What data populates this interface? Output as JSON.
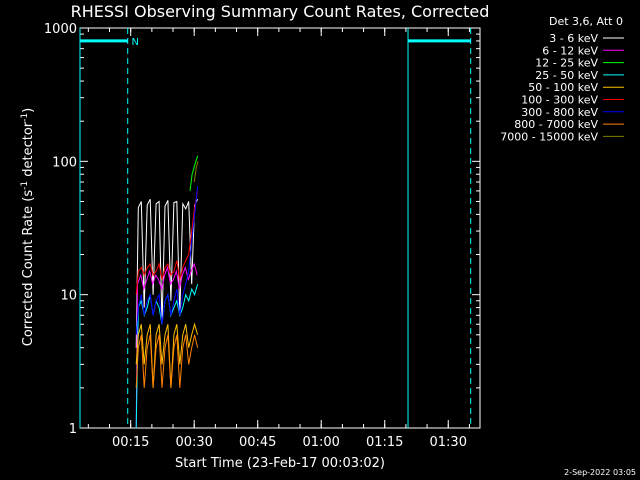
{
  "chart_data": {
    "type": "line",
    "title": "RHESSI Observing Summary Count Rates, Corrected",
    "xlabel": "Start Time (23-Feb-17 00:03:02)",
    "ylabel_main": "Corrected Count Rate (s",
    "ylabel_sup1": "-1",
    "ylabel_mid": " detector",
    "ylabel_sup2": "-1",
    "ylabel_end": ")",
    "yscale": "log",
    "xlim_minutes": [
      3.03,
      97.5
    ],
    "ylim": [
      1,
      1000
    ],
    "x_ticks": [
      {
        "minutes": 15,
        "label": "00:15"
      },
      {
        "minutes": 30,
        "label": "00:30"
      },
      {
        "minutes": 45,
        "label": "00:45"
      },
      {
        "minutes": 60,
        "label": "01:00"
      },
      {
        "minutes": 75,
        "label": "01:15"
      },
      {
        "minutes": 90,
        "label": "01:30"
      }
    ],
    "y_ticks": [
      {
        "value": 1,
        "label": "1"
      },
      {
        "value": 10,
        "label": "10"
      },
      {
        "value": 100,
        "label": "100"
      },
      {
        "value": 1000,
        "label": "1000"
      }
    ],
    "legend_header": "Det 3,6, Att 0",
    "legend_position": "right",
    "series": [
      {
        "name": "3 - 6 keV",
        "color": "#ffffff",
        "baseline": 38,
        "x_start": 16.3,
        "x_end": 28.0,
        "points": [
          [
            16.3,
            4
          ],
          [
            16.8,
            45
          ],
          [
            17.5,
            50
          ],
          [
            18.2,
            8
          ],
          [
            18.9,
            47
          ],
          [
            19.6,
            52
          ],
          [
            20.3,
            10
          ],
          [
            21.0,
            48
          ],
          [
            21.7,
            50
          ],
          [
            22.4,
            6
          ],
          [
            23.1,
            46
          ],
          [
            23.8,
            51
          ],
          [
            24.5,
            9
          ],
          [
            25.2,
            49
          ],
          [
            25.9,
            50
          ],
          [
            26.6,
            7
          ],
          [
            27.3,
            48
          ],
          [
            28.0,
            44
          ],
          [
            28.7,
            50
          ],
          [
            29.4,
            12
          ],
          [
            30.1,
            47
          ],
          [
            30.8,
            52
          ]
        ]
      },
      {
        "name": "6 - 12 keV",
        "color": "#ff00ff",
        "points": [
          [
            16.3,
            1
          ],
          [
            16.6,
            12
          ],
          [
            17.4,
            14
          ],
          [
            18.1,
            11
          ],
          [
            18.8,
            13
          ],
          [
            19.5,
            15
          ],
          [
            20.2,
            12
          ],
          [
            20.9,
            14
          ],
          [
            21.6,
            13
          ],
          [
            22.3,
            11
          ],
          [
            23.0,
            14
          ],
          [
            23.7,
            16
          ],
          [
            24.4,
            12
          ],
          [
            25.1,
            13
          ],
          [
            25.8,
            15
          ],
          [
            26.5,
            11
          ],
          [
            27.2,
            14
          ],
          [
            27.9,
            16
          ],
          [
            28.6,
            13
          ],
          [
            29.3,
            15
          ],
          [
            30.0,
            17
          ],
          [
            30.7,
            14
          ]
        ]
      },
      {
        "name": "12 - 25 keV",
        "color": "#00ff00",
        "points": [
          [
            29.0,
            60
          ],
          [
            29.5,
            80
          ],
          [
            30.2,
            95
          ],
          [
            30.8,
            110
          ]
        ]
      },
      {
        "name": "25 - 50 keV",
        "color": "#00ffff",
        "points": [
          [
            16.3,
            1
          ],
          [
            16.8,
            8
          ],
          [
            17.5,
            9
          ],
          [
            18.2,
            7
          ],
          [
            18.9,
            8
          ],
          [
            19.6,
            10
          ],
          [
            20.3,
            7
          ],
          [
            21.0,
            9
          ],
          [
            21.7,
            8
          ],
          [
            22.4,
            6
          ],
          [
            23.1,
            9
          ],
          [
            23.8,
            10
          ],
          [
            24.5,
            7
          ],
          [
            25.2,
            8
          ],
          [
            25.9,
            9
          ],
          [
            26.6,
            7
          ],
          [
            27.3,
            8
          ],
          [
            28.0,
            10
          ],
          [
            28.7,
            9
          ],
          [
            29.4,
            11
          ],
          [
            30.1,
            10
          ],
          [
            30.8,
            12
          ]
        ]
      },
      {
        "name": "50 - 100 keV",
        "color": "#ffc000",
        "points": [
          [
            16.3,
            3
          ],
          [
            16.8,
            5
          ],
          [
            17.5,
            6
          ],
          [
            18.2,
            3
          ],
          [
            18.9,
            5
          ],
          [
            19.6,
            6
          ],
          [
            20.3,
            2
          ],
          [
            21.0,
            5
          ],
          [
            21.7,
            6
          ],
          [
            22.4,
            3
          ],
          [
            23.1,
            5
          ],
          [
            23.8,
            6
          ],
          [
            24.5,
            2
          ],
          [
            25.2,
            5
          ],
          [
            25.9,
            6
          ],
          [
            26.6,
            3
          ],
          [
            27.3,
            5
          ],
          [
            28.0,
            6
          ],
          [
            28.7,
            4
          ],
          [
            29.4,
            5
          ],
          [
            30.1,
            6
          ],
          [
            30.8,
            5
          ]
        ]
      },
      {
        "name": "100 - 300 keV",
        "color": "#ff0000",
        "points": [
          [
            16.3,
            10
          ],
          [
            16.8,
            15
          ],
          [
            17.5,
            16
          ],
          [
            18.2,
            14
          ],
          [
            18.9,
            16
          ],
          [
            19.6,
            17
          ],
          [
            20.3,
            14
          ],
          [
            21.0,
            15
          ],
          [
            21.7,
            17
          ],
          [
            22.4,
            13
          ],
          [
            23.1,
            16
          ],
          [
            23.8,
            17
          ],
          [
            24.5,
            14
          ],
          [
            25.2,
            15
          ],
          [
            25.9,
            18
          ],
          [
            26.6,
            13
          ],
          [
            27.3,
            16
          ],
          [
            28.0,
            18
          ],
          [
            28.7,
            20
          ],
          [
            29.4,
            30
          ],
          [
            30.1,
            45
          ],
          [
            30.8,
            60
          ]
        ]
      },
      {
        "name": "300 - 800 keV",
        "color": "#0000ff",
        "points": [
          [
            16.3,
            5
          ],
          [
            16.8,
            8
          ],
          [
            17.5,
            10
          ],
          [
            18.2,
            7
          ],
          [
            18.9,
            9
          ],
          [
            19.6,
            10
          ],
          [
            20.3,
            7
          ],
          [
            21.0,
            9
          ],
          [
            21.7,
            10
          ],
          [
            22.4,
            6
          ],
          [
            23.1,
            9
          ],
          [
            23.8,
            10
          ],
          [
            24.5,
            7
          ],
          [
            25.2,
            9
          ],
          [
            25.9,
            11
          ],
          [
            26.6,
            7
          ],
          [
            27.3,
            10
          ],
          [
            28.0,
            12
          ],
          [
            28.7,
            15
          ],
          [
            29.4,
            25
          ],
          [
            30.1,
            40
          ],
          [
            30.8,
            65
          ]
        ]
      },
      {
        "name": "800 - 7000 keV",
        "color": "#ff8000",
        "points": [
          [
            16.3,
            2
          ],
          [
            16.8,
            4
          ],
          [
            17.5,
            5
          ],
          [
            18.2,
            2
          ],
          [
            18.9,
            4
          ],
          [
            19.6,
            5
          ],
          [
            20.3,
            2
          ],
          [
            21.0,
            4
          ],
          [
            21.7,
            5
          ],
          [
            22.4,
            2
          ],
          [
            23.1,
            4
          ],
          [
            23.8,
            5
          ],
          [
            24.5,
            2
          ],
          [
            25.2,
            4
          ],
          [
            25.9,
            5
          ],
          [
            26.6,
            2
          ],
          [
            27.3,
            4
          ],
          [
            28.0,
            5
          ],
          [
            28.7,
            3
          ],
          [
            29.4,
            4
          ],
          [
            30.1,
            5
          ],
          [
            30.8,
            4
          ]
        ]
      },
      {
        "name": "7000 - 15000 keV",
        "color": "#808000",
        "points": [
          [
            30.0,
            70
          ],
          [
            30.5,
            90
          ],
          [
            30.9,
            100
          ]
        ]
      }
    ],
    "annotations": [
      {
        "kind": "bar",
        "color": "#00ffff",
        "x_start": 3.03,
        "x_end": 14.3,
        "y": 800
      },
      {
        "kind": "bar",
        "color": "#00ffff",
        "x_start": 80.5,
        "x_end": 95.3,
        "y": 800
      },
      {
        "kind": "text",
        "text": "N",
        "color": "#00ffff",
        "x": 15.2,
        "y": 800
      },
      {
        "kind": "solid-vline",
        "color": "#00ffff",
        "x": 3.03
      },
      {
        "kind": "dashed-vline",
        "color": "#00ffff",
        "x": 14.3
      },
      {
        "kind": "solid-vline",
        "color": "#00ffff",
        "x": 80.5
      },
      {
        "kind": "dashed-vline",
        "color": "#00ffff",
        "x": 95.3
      }
    ],
    "footer_timestamp": "2-Sep-2022 03:05"
  }
}
